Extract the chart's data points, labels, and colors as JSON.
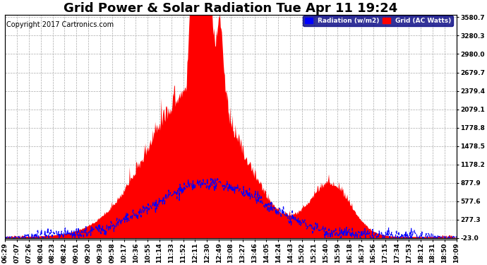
{
  "title": "Grid Power & Solar Radiation Tue Apr 11 19:24",
  "copyright": "Copyright 2017 Cartronics.com",
  "legend_radiation": "Radiation (w/m2)",
  "legend_grid": "Grid (AC Watts)",
  "ymin": -23.0,
  "ymax": 3580.7,
  "yticks": [
    3580.7,
    3280.3,
    2980.0,
    2679.7,
    2379.4,
    2079.1,
    1778.8,
    1478.5,
    1178.2,
    877.9,
    577.6,
    277.3,
    -23.0
  ],
  "xtick_labels": [
    "06:29",
    "07:07",
    "07:26",
    "08:04",
    "08:23",
    "08:42",
    "09:01",
    "09:20",
    "09:39",
    "09:58",
    "10:17",
    "10:36",
    "10:55",
    "11:14",
    "11:33",
    "11:52",
    "12:11",
    "12:30",
    "12:49",
    "13:08",
    "13:27",
    "13:46",
    "14:05",
    "14:24",
    "14:43",
    "15:02",
    "15:21",
    "15:40",
    "15:59",
    "16:18",
    "16:37",
    "16:56",
    "17:15",
    "17:34",
    "17:53",
    "18:12",
    "18:31",
    "18:50",
    "19:09"
  ],
  "bg_color": "#ffffff",
  "grid_color": "#aaaaaa",
  "radiation_color": "#0000ff",
  "grid_ac_color": "#ff0000",
  "title_fontsize": 13,
  "copyright_fontsize": 7,
  "tick_fontsize": 6.5
}
